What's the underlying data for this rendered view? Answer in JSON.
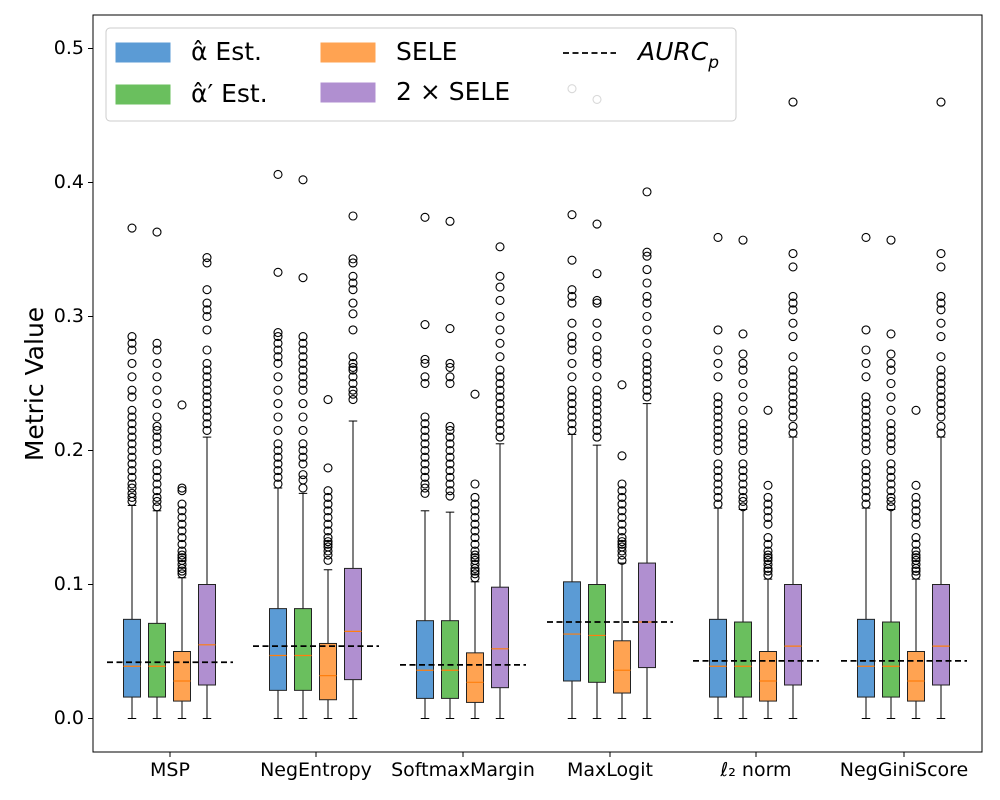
{
  "chart_data": {
    "type": "box",
    "title": "",
    "xlabel": "",
    "ylabel": "Metric Value",
    "ylim": [
      -0.025,
      0.525
    ],
    "yticks": [
      "0.0",
      "0.1",
      "0.2",
      "0.3",
      "0.4",
      "0.5"
    ],
    "categories": [
      "MSP",
      "NegEntropy",
      "SoftmaxMargin",
      "MaxLogit",
      "ℓ₂ norm",
      "NegGiniScore"
    ],
    "legend": {
      "placement": "top-left",
      "entries": [
        {
          "label": "α̂ Est.",
          "color": "#5b9bd5"
        },
        {
          "label": "α̂′ Est.",
          "color": "#6abf5e"
        },
        {
          "label": "SELE",
          "color": "#ffa352"
        },
        {
          "label": "2 × SELE",
          "color": "#b08fd0"
        },
        {
          "label": "AURC",
          "sub": "p",
          "style": "dashed"
        }
      ]
    },
    "series_colors": {
      "alpha_est": "#5b9bd5",
      "alpha_prime_est": "#6abf5e",
      "sele": "#ffa352",
      "two_sele": "#b08fd0",
      "median": "#ff7f0e"
    },
    "groups": [
      {
        "category": "MSP",
        "aurc_p": 0.042,
        "boxes": [
          {
            "series": "alpha_est",
            "min": 0.0,
            "q1": 0.016,
            "median": 0.039,
            "q3": 0.074,
            "max": 0.159,
            "outliers": [
              0.162,
              0.165,
              0.168,
              0.172,
              0.175,
              0.18,
              0.185,
              0.19,
              0.195,
              0.2,
              0.205,
              0.21,
              0.215,
              0.22,
              0.225,
              0.23,
              0.24,
              0.245,
              0.255,
              0.265,
              0.275,
              0.28,
              0.285,
              0.366
            ]
          },
          {
            "series": "alpha_prime_est",
            "min": 0.0,
            "q1": 0.016,
            "median": 0.039,
            "q3": 0.071,
            "max": 0.155,
            "outliers": [
              0.158,
              0.162,
              0.165,
              0.17,
              0.175,
              0.18,
              0.185,
              0.19,
              0.2,
              0.205,
              0.21,
              0.215,
              0.218,
              0.225,
              0.235,
              0.245,
              0.255,
              0.265,
              0.275,
              0.28,
              0.363
            ]
          },
          {
            "series": "sele",
            "min": 0.0,
            "q1": 0.013,
            "median": 0.028,
            "q3": 0.05,
            "max": 0.105,
            "outliers": [
              0.108,
              0.11,
              0.112,
              0.115,
              0.118,
              0.12,
              0.122,
              0.125,
              0.13,
              0.135,
              0.14,
              0.145,
              0.15,
              0.155,
              0.16,
              0.17,
              0.172,
              0.234
            ]
          },
          {
            "series": "two_sele",
            "min": 0.0,
            "q1": 0.025,
            "median": 0.055,
            "q3": 0.1,
            "max": 0.21,
            "outliers": [
              0.215,
              0.22,
              0.225,
              0.23,
              0.235,
              0.24,
              0.245,
              0.25,
              0.255,
              0.26,
              0.265,
              0.275,
              0.29,
              0.3,
              0.305,
              0.31,
              0.32,
              0.34,
              0.344
            ]
          }
        ]
      },
      {
        "category": "NegEntropy",
        "aurc_p": 0.054,
        "boxes": [
          {
            "series": "alpha_est",
            "min": 0.0,
            "q1": 0.021,
            "median": 0.047,
            "q3": 0.082,
            "max": 0.172,
            "outliers": [
              0.175,
              0.18,
              0.185,
              0.19,
              0.195,
              0.2,
              0.205,
              0.215,
              0.225,
              0.235,
              0.245,
              0.255,
              0.265,
              0.27,
              0.275,
              0.28,
              0.285,
              0.288,
              0.333,
              0.406
            ]
          },
          {
            "series": "alpha_prime_est",
            "min": 0.0,
            "q1": 0.021,
            "median": 0.047,
            "q3": 0.082,
            "max": 0.168,
            "outliers": [
              0.172,
              0.178,
              0.182,
              0.19,
              0.195,
              0.2,
              0.205,
              0.215,
              0.225,
              0.235,
              0.245,
              0.25,
              0.255,
              0.26,
              0.265,
              0.27,
              0.275,
              0.28,
              0.285,
              0.329,
              0.402
            ]
          },
          {
            "series": "sele",
            "min": 0.0,
            "q1": 0.014,
            "median": 0.032,
            "q3": 0.056,
            "max": 0.111,
            "outliers": [
              0.118,
              0.122,
              0.125,
              0.128,
              0.13,
              0.132,
              0.135,
              0.14,
              0.145,
              0.15,
              0.155,
              0.16,
              0.165,
              0.17,
              0.187,
              0.238
            ]
          },
          {
            "series": "two_sele",
            "min": 0.0,
            "q1": 0.029,
            "median": 0.065,
            "q3": 0.112,
            "max": 0.222,
            "outliers": [
              0.238,
              0.242,
              0.245,
              0.25,
              0.255,
              0.26,
              0.262,
              0.265,
              0.27,
              0.29,
              0.302,
              0.31,
              0.32,
              0.325,
              0.33,
              0.34,
              0.343,
              0.375
            ]
          }
        ]
      },
      {
        "category": "SoftmaxMargin",
        "aurc_p": 0.04,
        "boxes": [
          {
            "series": "alpha_est",
            "min": 0.0,
            "q1": 0.015,
            "median": 0.036,
            "q3": 0.073,
            "max": 0.155,
            "outliers": [
              0.168,
              0.172,
              0.175,
              0.18,
              0.185,
              0.19,
              0.195,
              0.2,
              0.205,
              0.21,
              0.215,
              0.22,
              0.225,
              0.25,
              0.255,
              0.265,
              0.268,
              0.294,
              0.374
            ]
          },
          {
            "series": "alpha_prime_est",
            "min": 0.0,
            "q1": 0.015,
            "median": 0.036,
            "q3": 0.073,
            "max": 0.154,
            "outliers": [
              0.166,
              0.17,
              0.175,
              0.18,
              0.185,
              0.19,
              0.195,
              0.2,
              0.205,
              0.21,
              0.215,
              0.218,
              0.25,
              0.255,
              0.262,
              0.265,
              0.291,
              0.371
            ]
          },
          {
            "series": "sele",
            "min": 0.0,
            "q1": 0.012,
            "median": 0.027,
            "q3": 0.049,
            "max": 0.102,
            "outliers": [
              0.105,
              0.108,
              0.11,
              0.112,
              0.115,
              0.118,
              0.12,
              0.122,
              0.125,
              0.13,
              0.135,
              0.14,
              0.145,
              0.15,
              0.155,
              0.16,
              0.165,
              0.175,
              0.242
            ]
          },
          {
            "series": "two_sele",
            "min": 0.0,
            "q1": 0.023,
            "median": 0.052,
            "q3": 0.098,
            "max": 0.205,
            "outliers": [
              0.21,
              0.215,
              0.22,
              0.225,
              0.23,
              0.235,
              0.24,
              0.245,
              0.25,
              0.255,
              0.26,
              0.27,
              0.28,
              0.29,
              0.3,
              0.312,
              0.322,
              0.33,
              0.352
            ]
          }
        ]
      },
      {
        "category": "MaxLogit",
        "aurc_p": 0.072,
        "boxes": [
          {
            "series": "alpha_est",
            "min": 0.0,
            "q1": 0.028,
            "median": 0.063,
            "q3": 0.102,
            "max": 0.212,
            "outliers": [
              0.215,
              0.22,
              0.225,
              0.23,
              0.235,
              0.24,
              0.245,
              0.255,
              0.265,
              0.275,
              0.28,
              0.285,
              0.295,
              0.31,
              0.315,
              0.32,
              0.342,
              0.376,
              0.47
            ]
          },
          {
            "series": "alpha_prime_est",
            "min": 0.0,
            "q1": 0.027,
            "median": 0.062,
            "q3": 0.1,
            "max": 0.204,
            "outliers": [
              0.21,
              0.215,
              0.22,
              0.225,
              0.23,
              0.235,
              0.24,
              0.245,
              0.255,
              0.265,
              0.27,
              0.275,
              0.285,
              0.295,
              0.31,
              0.312,
              0.332,
              0.369,
              0.462
            ]
          },
          {
            "series": "sele",
            "min": 0.0,
            "q1": 0.019,
            "median": 0.036,
            "q3": 0.058,
            "max": 0.116,
            "outliers": [
              0.118,
              0.122,
              0.125,
              0.128,
              0.13,
              0.132,
              0.135,
              0.14,
              0.145,
              0.15,
              0.155,
              0.16,
              0.165,
              0.17,
              0.175,
              0.196,
              0.249
            ]
          },
          {
            "series": "two_sele",
            "min": 0.0,
            "q1": 0.038,
            "median": 0.072,
            "q3": 0.116,
            "max": 0.235,
            "outliers": [
              0.24,
              0.245,
              0.25,
              0.255,
              0.26,
              0.265,
              0.27,
              0.28,
              0.29,
              0.3,
              0.31,
              0.315,
              0.325,
              0.335,
              0.345,
              0.348,
              0.393
            ]
          }
        ]
      },
      {
        "category": "ℓ₂ norm",
        "aurc_p": 0.043,
        "boxes": [
          {
            "series": "alpha_est",
            "min": 0.0,
            "q1": 0.016,
            "median": 0.039,
            "q3": 0.074,
            "max": 0.157,
            "outliers": [
              0.16,
              0.165,
              0.17,
              0.175,
              0.18,
              0.185,
              0.19,
              0.2,
              0.205,
              0.21,
              0.215,
              0.22,
              0.225,
              0.23,
              0.235,
              0.24,
              0.255,
              0.265,
              0.275,
              0.29,
              0.359
            ]
          },
          {
            "series": "alpha_prime_est",
            "min": 0.0,
            "q1": 0.016,
            "median": 0.039,
            "q3": 0.072,
            "max": 0.156,
            "outliers": [
              0.158,
              0.162,
              0.165,
              0.17,
              0.175,
              0.18,
              0.185,
              0.19,
              0.2,
              0.205,
              0.21,
              0.215,
              0.22,
              0.23,
              0.24,
              0.25,
              0.26,
              0.265,
              0.272,
              0.287,
              0.357
            ]
          },
          {
            "series": "sele",
            "min": 0.0,
            "q1": 0.013,
            "median": 0.028,
            "q3": 0.05,
            "max": 0.104,
            "outliers": [
              0.107,
              0.11,
              0.112,
              0.115,
              0.118,
              0.12,
              0.122,
              0.125,
              0.13,
              0.135,
              0.145,
              0.15,
              0.155,
              0.16,
              0.165,
              0.174,
              0.23
            ]
          },
          {
            "series": "two_sele",
            "min": 0.0,
            "q1": 0.025,
            "median": 0.054,
            "q3": 0.1,
            "max": 0.21,
            "outliers": [
              0.213,
              0.218,
              0.225,
              0.23,
              0.235,
              0.24,
              0.245,
              0.25,
              0.255,
              0.26,
              0.27,
              0.285,
              0.295,
              0.305,
              0.31,
              0.315,
              0.337,
              0.347,
              0.46
            ]
          }
        ]
      },
      {
        "category": "NegGiniScore",
        "aurc_p": 0.043,
        "boxes": [
          {
            "series": "alpha_est",
            "min": 0.0,
            "q1": 0.016,
            "median": 0.039,
            "q3": 0.074,
            "max": 0.157,
            "outliers": [
              0.16,
              0.165,
              0.17,
              0.175,
              0.18,
              0.185,
              0.19,
              0.2,
              0.205,
              0.21,
              0.215,
              0.22,
              0.225,
              0.23,
              0.235,
              0.24,
              0.255,
              0.265,
              0.275,
              0.29,
              0.359
            ]
          },
          {
            "series": "alpha_prime_est",
            "min": 0.0,
            "q1": 0.016,
            "median": 0.039,
            "q3": 0.072,
            "max": 0.156,
            "outliers": [
              0.158,
              0.162,
              0.165,
              0.17,
              0.175,
              0.18,
              0.185,
              0.19,
              0.2,
              0.205,
              0.21,
              0.215,
              0.22,
              0.23,
              0.24,
              0.25,
              0.26,
              0.265,
              0.272,
              0.287,
              0.357
            ]
          },
          {
            "series": "sele",
            "min": 0.0,
            "q1": 0.013,
            "median": 0.028,
            "q3": 0.05,
            "max": 0.104,
            "outliers": [
              0.107,
              0.11,
              0.112,
              0.115,
              0.118,
              0.12,
              0.122,
              0.125,
              0.13,
              0.135,
              0.145,
              0.15,
              0.155,
              0.16,
              0.165,
              0.174,
              0.23
            ]
          },
          {
            "series": "two_sele",
            "min": 0.0,
            "q1": 0.025,
            "median": 0.054,
            "q3": 0.1,
            "max": 0.21,
            "outliers": [
              0.213,
              0.218,
              0.225,
              0.23,
              0.235,
              0.24,
              0.245,
              0.25,
              0.255,
              0.26,
              0.27,
              0.285,
              0.295,
              0.305,
              0.31,
              0.315,
              0.337,
              0.347,
              0.46
            ]
          }
        ]
      }
    ]
  }
}
